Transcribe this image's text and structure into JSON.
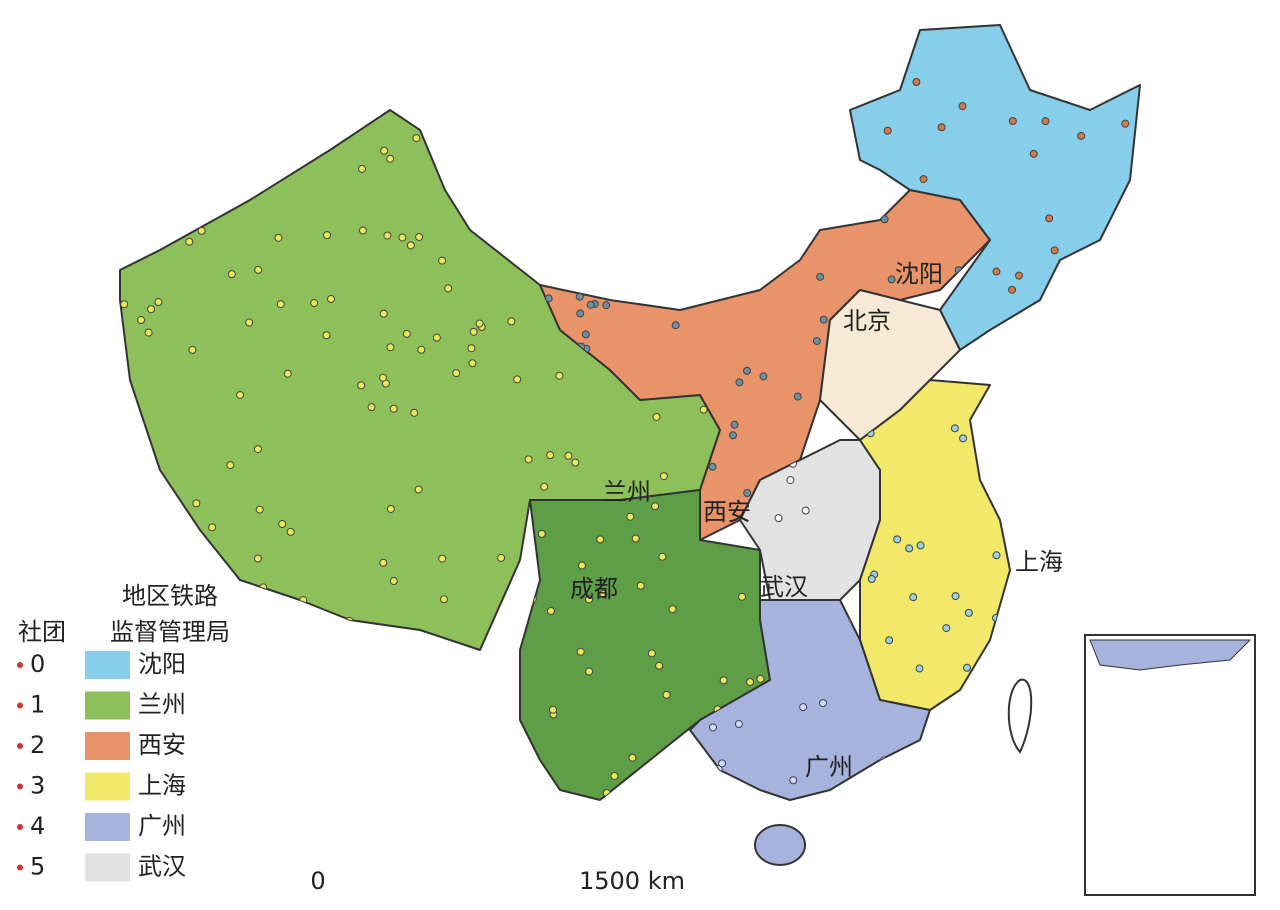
{
  "legend": {
    "title_line1": "地区铁路",
    "title_line2": "监督管理局",
    "community_header": "社团",
    "items": [
      {
        "community": "0",
        "bureau": "沈阳",
        "color": "#87ceeb"
      },
      {
        "community": "1",
        "bureau": "兰州",
        "color": "#8dc05a"
      },
      {
        "community": "2",
        "bureau": "西安",
        "color": "#e8936a"
      },
      {
        "community": "3",
        "bureau": "上海",
        "color": "#f2e86a"
      },
      {
        "community": "4",
        "bureau": "广州",
        "color": "#a6b3dc"
      },
      {
        "community": "5",
        "bureau": "武汉",
        "color": "#e2e2e2"
      }
    ]
  },
  "city_labels": [
    "沈阳",
    "北京",
    "兰州",
    "西安",
    "成都",
    "武汉",
    "上海",
    "广州"
  ],
  "scale_bar": {
    "start": "0",
    "end": "1500 km"
  }
}
